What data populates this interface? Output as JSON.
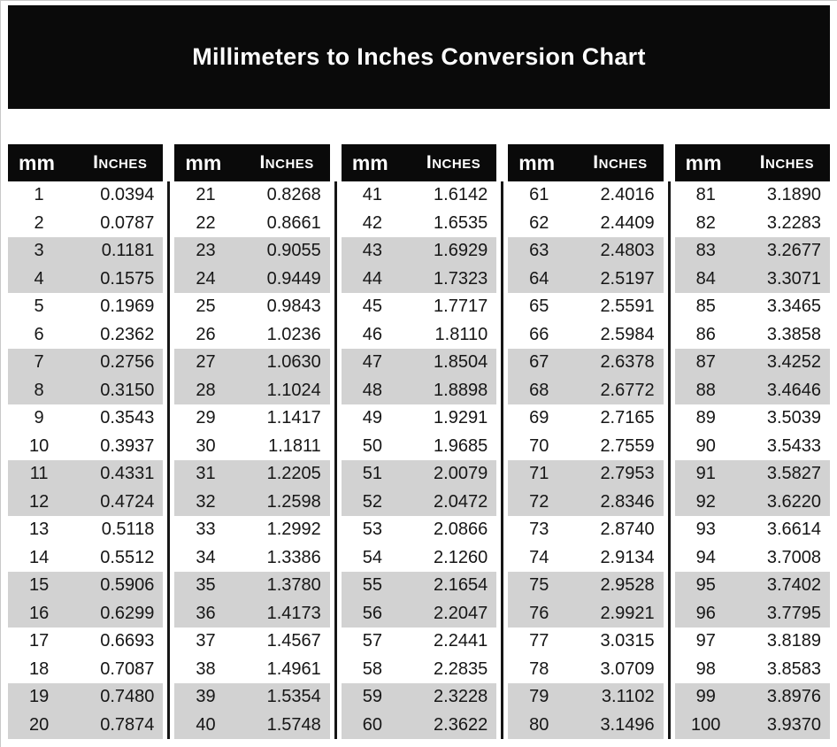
{
  "title": "Millimeters to Inches Conversion Chart",
  "headers": {
    "mm": "mm",
    "inches": "Inches"
  },
  "colors": {
    "banner_bg": "#0a0a0a",
    "header_bg": "#0a0a0a",
    "header_text": "#ffffff",
    "stripe": "#d2d2d2",
    "row_text": "#161616",
    "divider": "#161616"
  },
  "chart_data": {
    "type": "table",
    "title": "Millimeters to Inches Conversion Chart",
    "columns": [
      "mm",
      "Inches"
    ],
    "stripe_pattern": "two white rows alternating with two gray rows",
    "panels": [
      {
        "rows": [
          [
            "1",
            "0.0394"
          ],
          [
            "2",
            "0.0787"
          ],
          [
            "3",
            "0.1181"
          ],
          [
            "4",
            "0.1575"
          ],
          [
            "5",
            "0.1969"
          ],
          [
            "6",
            "0.2362"
          ],
          [
            "7",
            "0.2756"
          ],
          [
            "8",
            "0.3150"
          ],
          [
            "9",
            "0.3543"
          ],
          [
            "10",
            "0.3937"
          ],
          [
            "11",
            "0.4331"
          ],
          [
            "12",
            "0.4724"
          ],
          [
            "13",
            "0.5118"
          ],
          [
            "14",
            "0.5512"
          ],
          [
            "15",
            "0.5906"
          ],
          [
            "16",
            "0.6299"
          ],
          [
            "17",
            "0.6693"
          ],
          [
            "18",
            "0.7087"
          ],
          [
            "19",
            "0.7480"
          ],
          [
            "20",
            "0.7874"
          ]
        ]
      },
      {
        "rows": [
          [
            "21",
            "0.8268"
          ],
          [
            "22",
            "0.8661"
          ],
          [
            "23",
            "0.9055"
          ],
          [
            "24",
            "0.9449"
          ],
          [
            "25",
            "0.9843"
          ],
          [
            "26",
            "1.0236"
          ],
          [
            "27",
            "1.0630"
          ],
          [
            "28",
            "1.1024"
          ],
          [
            "29",
            "1.1417"
          ],
          [
            "30",
            "1.1811"
          ],
          [
            "31",
            "1.2205"
          ],
          [
            "32",
            "1.2598"
          ],
          [
            "33",
            "1.2992"
          ],
          [
            "34",
            "1.3386"
          ],
          [
            "35",
            "1.3780"
          ],
          [
            "36",
            "1.4173"
          ],
          [
            "37",
            "1.4567"
          ],
          [
            "38",
            "1.4961"
          ],
          [
            "39",
            "1.5354"
          ],
          [
            "40",
            "1.5748"
          ]
        ]
      },
      {
        "rows": [
          [
            "41",
            "1.6142"
          ],
          [
            "42",
            "1.6535"
          ],
          [
            "43",
            "1.6929"
          ],
          [
            "44",
            "1.7323"
          ],
          [
            "45",
            "1.7717"
          ],
          [
            "46",
            "1.8110"
          ],
          [
            "47",
            "1.8504"
          ],
          [
            "48",
            "1.8898"
          ],
          [
            "49",
            "1.9291"
          ],
          [
            "50",
            "1.9685"
          ],
          [
            "51",
            "2.0079"
          ],
          [
            "52",
            "2.0472"
          ],
          [
            "53",
            "2.0866"
          ],
          [
            "54",
            "2.1260"
          ],
          [
            "55",
            "2.1654"
          ],
          [
            "56",
            "2.2047"
          ],
          [
            "57",
            "2.2441"
          ],
          [
            "58",
            "2.2835"
          ],
          [
            "59",
            "2.3228"
          ],
          [
            "60",
            "2.3622"
          ]
        ]
      },
      {
        "rows": [
          [
            "61",
            "2.4016"
          ],
          [
            "62",
            "2.4409"
          ],
          [
            "63",
            "2.4803"
          ],
          [
            "64",
            "2.5197"
          ],
          [
            "65",
            "2.5591"
          ],
          [
            "66",
            "2.5984"
          ],
          [
            "67",
            "2.6378"
          ],
          [
            "68",
            "2.6772"
          ],
          [
            "69",
            "2.7165"
          ],
          [
            "70",
            "2.7559"
          ],
          [
            "71",
            "2.7953"
          ],
          [
            "72",
            "2.8346"
          ],
          [
            "73",
            "2.8740"
          ],
          [
            "74",
            "2.9134"
          ],
          [
            "75",
            "2.9528"
          ],
          [
            "76",
            "2.9921"
          ],
          [
            "77",
            "3.0315"
          ],
          [
            "78",
            "3.0709"
          ],
          [
            "79",
            "3.1102"
          ],
          [
            "80",
            "3.1496"
          ]
        ]
      },
      {
        "rows": [
          [
            "81",
            "3.1890"
          ],
          [
            "82",
            "3.2283"
          ],
          [
            "83",
            "3.2677"
          ],
          [
            "84",
            "3.3071"
          ],
          [
            "85",
            "3.3465"
          ],
          [
            "86",
            "3.3858"
          ],
          [
            "87",
            "3.4252"
          ],
          [
            "88",
            "3.4646"
          ],
          [
            "89",
            "3.5039"
          ],
          [
            "90",
            "3.5433"
          ],
          [
            "91",
            "3.5827"
          ],
          [
            "92",
            "3.6220"
          ],
          [
            "93",
            "3.6614"
          ],
          [
            "94",
            "3.7008"
          ],
          [
            "95",
            "3.7402"
          ],
          [
            "96",
            "3.7795"
          ],
          [
            "97",
            "3.8189"
          ],
          [
            "98",
            "3.8583"
          ],
          [
            "99",
            "3.8976"
          ],
          [
            "100",
            "3.9370"
          ]
        ]
      }
    ]
  }
}
